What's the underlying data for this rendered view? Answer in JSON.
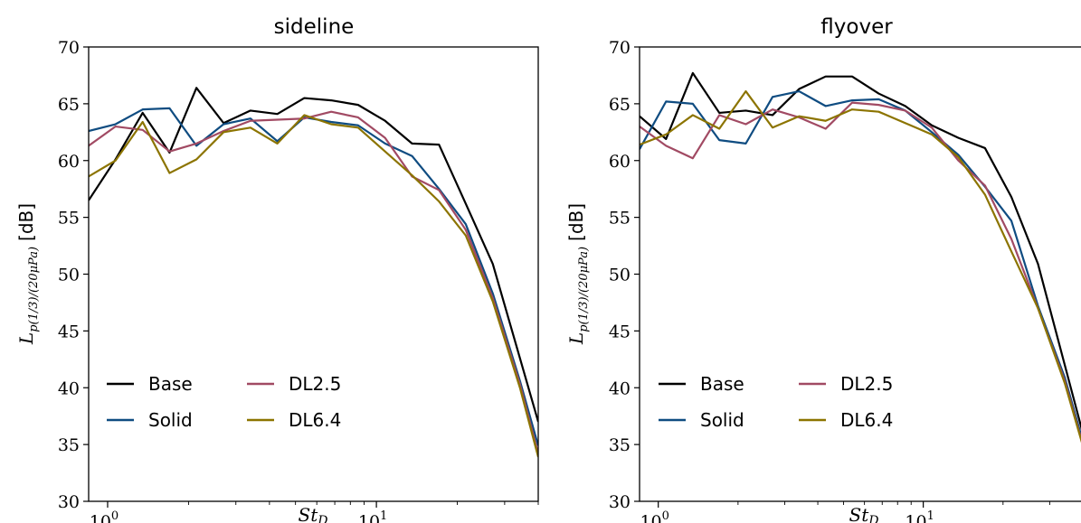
{
  "colors": {
    "Base": "#000000",
    "Solid": "#0f4c81",
    "DL2.5": "#a14a63",
    "DL6.4": "#8c7400"
  },
  "chart_data": [
    {
      "type": "line",
      "title": "sideline",
      "xlabel": "St_D",
      "ylabel": "L_{p(1/3)/(20μPa)} [dB]",
      "xscale": "log",
      "xlim": [
        0.85,
        40
      ],
      "ylim": [
        30,
        70
      ],
      "yticks": [
        30,
        35,
        40,
        45,
        50,
        55,
        60,
        65,
        70
      ],
      "xtick_labels": [
        "10^0",
        "10^1"
      ],
      "legend_loc": "lower-left",
      "x": [
        0.85,
        1.07,
        1.35,
        1.7,
        2.14,
        2.7,
        3.4,
        4.28,
        5.39,
        6.79,
        8.55,
        10.77,
        13.57,
        17.1,
        21.5,
        27.1,
        34.2,
        40
      ],
      "series": [
        {
          "name": "Base",
          "values": [
            56.5,
            60.1,
            64.2,
            60.7,
            66.4,
            63.3,
            64.4,
            64.1,
            65.5,
            65.3,
            64.9,
            63.5,
            61.5,
            61.4,
            56.2,
            50.9,
            42.6,
            37.0
          ]
        },
        {
          "name": "Solid",
          "values": [
            62.6,
            63.2,
            64.5,
            64.6,
            61.3,
            63.2,
            63.7,
            61.7,
            63.8,
            63.4,
            63.1,
            61.5,
            60.4,
            57.5,
            54.4,
            48.3,
            40.6,
            34.9
          ]
        },
        {
          "name": "DL2.5",
          "values": [
            61.3,
            63.0,
            62.7,
            60.8,
            61.5,
            62.6,
            63.5,
            63.6,
            63.7,
            64.3,
            63.8,
            62.0,
            58.6,
            57.4,
            53.9,
            47.9,
            40.3,
            34.2
          ]
        },
        {
          "name": "DL6.4",
          "values": [
            58.6,
            60.0,
            63.4,
            58.9,
            60.1,
            62.5,
            62.9,
            61.5,
            64.0,
            63.2,
            62.9,
            60.8,
            58.7,
            56.4,
            53.4,
            47.6,
            40.0,
            33.9
          ]
        }
      ]
    },
    {
      "type": "line",
      "title": "flyover",
      "xlabel": "St_D",
      "ylabel": "L_{p(1/3)/(20μPa)} [dB]",
      "xscale": "log",
      "xlim": [
        0.85,
        40
      ],
      "ylim": [
        30,
        70
      ],
      "yticks": [
        30,
        35,
        40,
        45,
        50,
        55,
        60,
        65,
        70
      ],
      "xtick_labels": [
        "10^0",
        "10^1"
      ],
      "legend_loc": "lower-left",
      "x": [
        0.85,
        1.07,
        1.35,
        1.7,
        2.14,
        2.7,
        3.4,
        4.28,
        5.39,
        6.79,
        8.55,
        10.77,
        13.57,
        17.1,
        21.5,
        27.1,
        34.2,
        40
      ],
      "series": [
        {
          "name": "Base",
          "values": [
            63.9,
            61.9,
            67.7,
            64.2,
            64.4,
            64.0,
            66.3,
            67.4,
            67.4,
            65.9,
            64.8,
            63.1,
            62.0,
            61.1,
            56.8,
            50.9,
            42.0,
            36.0
          ]
        },
        {
          "name": "Solid",
          "values": [
            61.0,
            65.2,
            65.0,
            61.8,
            61.5,
            65.6,
            66.1,
            64.8,
            65.3,
            65.4,
            64.4,
            62.5,
            60.5,
            57.7,
            54.7,
            47.2,
            40.9,
            35.3
          ]
        },
        {
          "name": "DL2.5",
          "values": [
            63.0,
            61.3,
            60.2,
            64.0,
            63.2,
            64.5,
            63.8,
            62.8,
            65.1,
            64.9,
            64.4,
            62.9,
            60.0,
            57.8,
            53.1,
            47.0,
            40.6,
            35.0
          ]
        },
        {
          "name": "DL6.4",
          "values": [
            61.4,
            62.3,
            64.0,
            62.8,
            66.1,
            62.9,
            63.9,
            63.5,
            64.5,
            64.3,
            63.3,
            62.3,
            60.3,
            57.0,
            52.0,
            47.0,
            40.4,
            34.9
          ]
        }
      ]
    }
  ]
}
